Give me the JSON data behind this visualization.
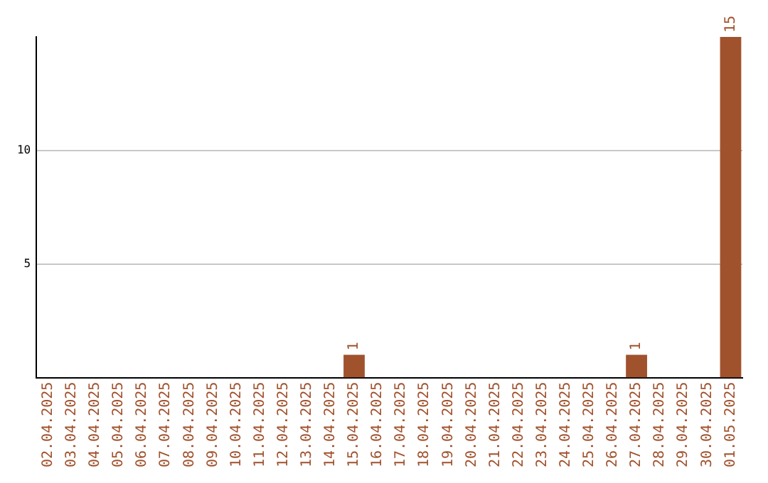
{
  "chart_data": {
    "type": "bar",
    "categories": [
      "02.04.2025",
      "03.04.2025",
      "04.04.2025",
      "05.04.2025",
      "06.04.2025",
      "07.04.2025",
      "08.04.2025",
      "09.04.2025",
      "10.04.2025",
      "11.04.2025",
      "12.04.2025",
      "13.04.2025",
      "14.04.2025",
      "15.04.2025",
      "16.04.2025",
      "17.04.2025",
      "18.04.2025",
      "19.04.2025",
      "20.04.2025",
      "21.04.2025",
      "22.04.2025",
      "23.04.2025",
      "24.04.2025",
      "25.04.2025",
      "26.04.2025",
      "27.04.2025",
      "28.04.2025",
      "29.04.2025",
      "30.04.2025",
      "01.05.2025"
    ],
    "values": [
      0,
      0,
      0,
      0,
      0,
      0,
      0,
      0,
      0,
      0,
      0,
      0,
      0,
      1,
      0,
      0,
      0,
      0,
      0,
      0,
      0,
      0,
      0,
      0,
      0,
      1,
      0,
      0,
      0,
      15
    ],
    "value_labels": [
      null,
      null,
      null,
      null,
      null,
      null,
      null,
      null,
      null,
      null,
      null,
      null,
      null,
      "1",
      null,
      null,
      null,
      null,
      null,
      null,
      null,
      null,
      null,
      null,
      null,
      "1",
      null,
      null,
      null,
      "15"
    ],
    "color": "#a0522d",
    "ylim": [
      0,
      15
    ],
    "yticks": [
      5,
      10
    ],
    "grid": "y",
    "legend": false
  }
}
